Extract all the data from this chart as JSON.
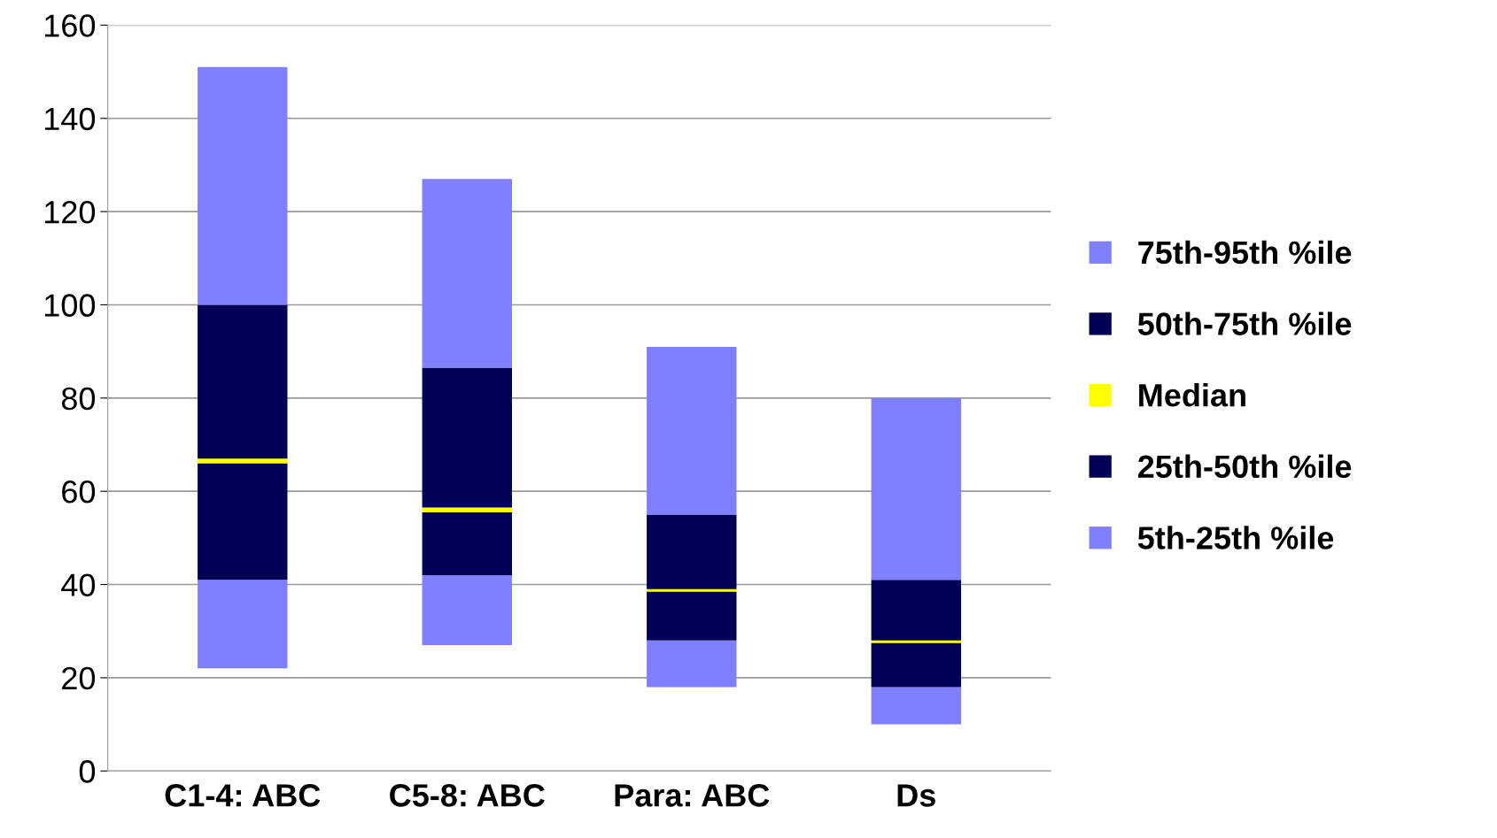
{
  "chart_data": {
    "type": "bar",
    "categories": [
      "C1-4: ABC",
      "C5-8: ABC",
      "Para: ABC",
      "Ds"
    ],
    "series": [
      {
        "name": "5th-25th %ile",
        "color": "#7f7fff",
        "base": [
          22,
          27,
          18,
          10
        ],
        "values": [
          19,
          15,
          10,
          8
        ]
      },
      {
        "name": "25th-50th %ile",
        "color": "#000055",
        "base": [
          41,
          42,
          28,
          18
        ],
        "values": [
          25,
          13.5,
          10.5,
          9.5
        ]
      },
      {
        "name": "Median",
        "color": "#ffff00",
        "base": [
          66,
          55.5,
          38.5,
          27.5
        ],
        "values": [
          1,
          1,
          0.5,
          0.5
        ]
      },
      {
        "name": "50th-75th %ile",
        "color": "#000055",
        "base": [
          67,
          56.5,
          39,
          28
        ],
        "values": [
          33,
          30,
          16,
          13
        ]
      },
      {
        "name": "75th-95th %ile",
        "color": "#7f7fff",
        "base": [
          100,
          86.5,
          55,
          41
        ],
        "values": [
          51,
          40.5,
          36,
          39
        ]
      }
    ],
    "ylim": [
      0,
      160
    ],
    "yticks": [
      0,
      20,
      40,
      60,
      80,
      100,
      120,
      140,
      160
    ],
    "grid": "y",
    "legend": "right"
  }
}
